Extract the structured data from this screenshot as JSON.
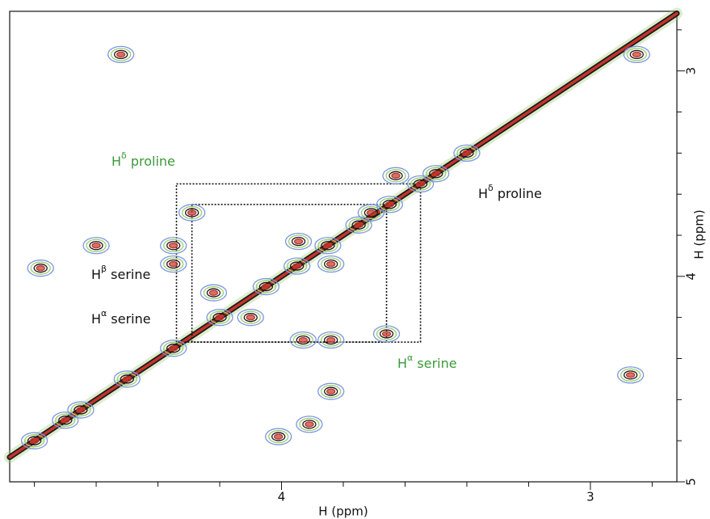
{
  "chart_data": {
    "type": "nmr-2d",
    "x_label": "H (ppm)",
    "y_label": "H (ppm)",
    "xlim": [
      4.88,
      2.72
    ],
    "ylim": [
      2.71,
      5
    ],
    "xticks": [
      4,
      3
    ],
    "x_minor_ticks": [
      4.8,
      4.6,
      4.4,
      4.2,
      3.8,
      3.6,
      3.4,
      3.2,
      2.8
    ],
    "yticks": [
      3,
      4,
      5
    ],
    "y_minor_ticks": [
      2.8,
      3.2,
      3.4,
      3.6,
      3.8,
      4.2,
      4.4,
      4.6,
      4.8
    ],
    "contour_colors": [
      "#7b97dd",
      "#9ccb72",
      "#1a1a1a",
      "#c3342b"
    ],
    "diagonal": true,
    "peaks": {
      "x": [
        4.52,
        2.85,
        4.78,
        4.6,
        4.29,
        4.35,
        4.35,
        4.22,
        4.1,
        3.945,
        3.84,
        3.66,
        3.84,
        3.93,
        4.01,
        3.91,
        3.84,
        2.87,
        3.63,
        3.55,
        3.71,
        4.7,
        4.8,
        4.65,
        4.5,
        4.35,
        4.2,
        4.05,
        3.95,
        3.85,
        3.75,
        3.65,
        3.5,
        3.4
      ],
      "y": [
        2.92,
        2.92,
        3.96,
        3.85,
        3.69,
        3.85,
        3.94,
        4.08,
        4.2,
        3.83,
        3.94,
        4.28,
        4.31,
        4.31,
        4.78,
        4.72,
        4.56,
        4.48,
        3.51,
        3.55,
        3.69,
        4.7,
        4.8,
        4.65,
        4.5,
        4.35,
        4.2,
        4.05,
        3.95,
        3.85,
        3.75,
        3.65,
        3.5,
        3.4
      ]
    },
    "boxes": [
      {
        "x": [
          4.34,
          3.55
        ],
        "y": [
          3.55,
          4.32
        ]
      },
      {
        "x": [
          4.29,
          3.66
        ],
        "y": [
          3.65,
          4.32
        ]
      }
    ],
    "annotations": [
      {
        "base": "H",
        "sup": "δ",
        "rest": " proline",
        "color": "#3a9a3a"
      },
      {
        "base": "H",
        "sup": "δ",
        "rest": " proline",
        "color": "#111111"
      },
      {
        "base": "H",
        "sup": "β",
        "rest": " serine",
        "color": "#111111"
      },
      {
        "base": "H",
        "sup": "α",
        "rest": " serine",
        "color": "#111111"
      },
      {
        "base": "H",
        "sup": "α",
        "rest": " serine",
        "color": "#3a9a3a"
      }
    ]
  }
}
